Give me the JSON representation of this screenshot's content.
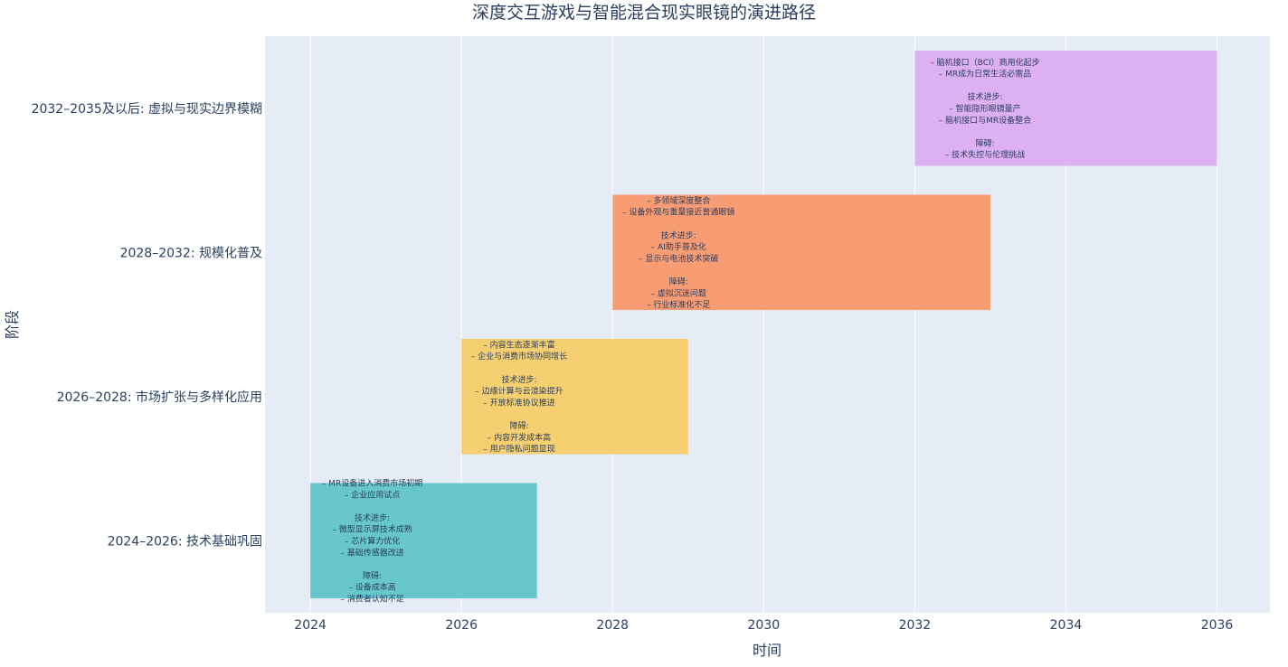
{
  "chart_data": {
    "type": "timeline",
    "title": "深度交互游戏与智能混合现实眼镜的演进路径",
    "xlabel": "时间",
    "ylabel": "阶段",
    "xlim": [
      2023.4,
      2036.7
    ],
    "xticks": [
      2024,
      2026,
      2028,
      2030,
      2032,
      2034,
      2036
    ],
    "grid": true,
    "legend": "none",
    "bars": [
      {
        "category": "2024–2026: 技术基础巩固",
        "start": 2024,
        "end": 2027,
        "color": "#68c6cd",
        "text": [
          "– MR设备进入消费市场初期",
          "– 企业应用试点",
          "",
          "技术进步:",
          "– 微型显示屏技术成熟",
          "– 芯片算力优化",
          "– 基础传感器改进",
          "",
          "障碍:",
          "– 设备成本高",
          "– 消费者认知不足"
        ]
      },
      {
        "category": "2026–2028: 市场扩张与多样化应用",
        "start": 2026,
        "end": 2029,
        "color": "#f6cf71",
        "text": [
          "– 内容生态逐渐丰富",
          "– 企业与消费市场协同增长",
          "",
          "技术进步:",
          "– 边缘计算与云渲染提升",
          "– 开放标准协议推进",
          "",
          "障碍:",
          "– 内容开发成本高",
          "– 用户隐私问题显现"
        ]
      },
      {
        "category": "2028–2032: 规模化普及",
        "start": 2028,
        "end": 2033,
        "color": "#f89c74",
        "text": [
          "– 多领域深度整合",
          "– 设备外观与重量接近普通眼镜",
          "",
          "技术进步:",
          "– AI助手普及化",
          "– 显示与电池技术突破",
          "",
          "障碍:",
          "– 虚拟沉迷问题",
          "– 行业标准化不足"
        ]
      },
      {
        "category": "2032–2035及以后: 虚拟与现实边界模糊",
        "start": 2032,
        "end": 2036,
        "color": "#dcb0f2",
        "text": [
          "– 脑机接口（BCI）商用化起步",
          "– MR成为日常生活必需品",
          "",
          "技术进步:",
          "– 智能隐形眼镜量产",
          "– 脑机接口与MR设备整合",
          "",
          "障碍:",
          "– 技术失控与伦理挑战"
        ]
      }
    ]
  }
}
